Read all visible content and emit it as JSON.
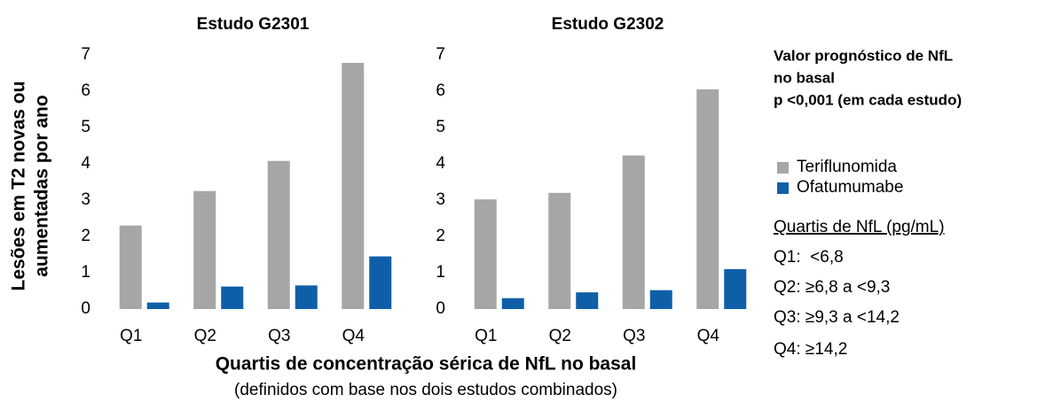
{
  "chart_data": [
    {
      "type": "bar",
      "title": "Estudo G2301",
      "categories": [
        "Q1",
        "Q2",
        "Q3",
        "Q4"
      ],
      "series": [
        {
          "name": "Teriflunomida",
          "color": "#a6a6a6",
          "values": [
            2.3,
            3.25,
            4.08,
            6.78
          ]
        },
        {
          "name": "Ofatumumabe",
          "color": "#0f5fa8",
          "values": [
            0.18,
            0.62,
            0.65,
            1.45
          ]
        }
      ],
      "ylim": [
        0,
        7
      ],
      "yticks": [
        0,
        1,
        2,
        3,
        4,
        5,
        6,
        7
      ],
      "grid": false
    },
    {
      "type": "bar",
      "title": "Estudo G2302",
      "categories": [
        "Q1",
        "Q2",
        "Q3",
        "Q4"
      ],
      "series": [
        {
          "name": "Teriflunomida",
          "color": "#a6a6a6",
          "values": [
            3.02,
            3.2,
            4.23,
            6.05
          ]
        },
        {
          "name": "Ofatumumabe",
          "color": "#0f5fa8",
          "values": [
            0.3,
            0.46,
            0.52,
            1.1
          ]
        }
      ],
      "ylim": [
        0,
        7
      ],
      "yticks": [
        0,
        1,
        2,
        3,
        4,
        5,
        6,
        7
      ],
      "grid": false
    }
  ],
  "figure": {
    "ylabel": [
      "Lesões em T2 novas ou",
      "aumentadas por ano"
    ],
    "xlabel": "Quartis de concentração sérica de NfL no basal",
    "xlabel_note": "(definidos com base nos dois estudos combinados)",
    "annotation": [
      "Valor prognóstico de NfL",
      "no basal",
      "p <0,001 (em cada estudo)"
    ],
    "quartiles_title": "Quartis de NfL (pg/mL)",
    "quartiles": [
      "Q1:  <6,8",
      "Q2: ≥6,8 a <9,3",
      "Q3: ≥9,3 a <14,2",
      "Q4: ≥14,2"
    ]
  }
}
